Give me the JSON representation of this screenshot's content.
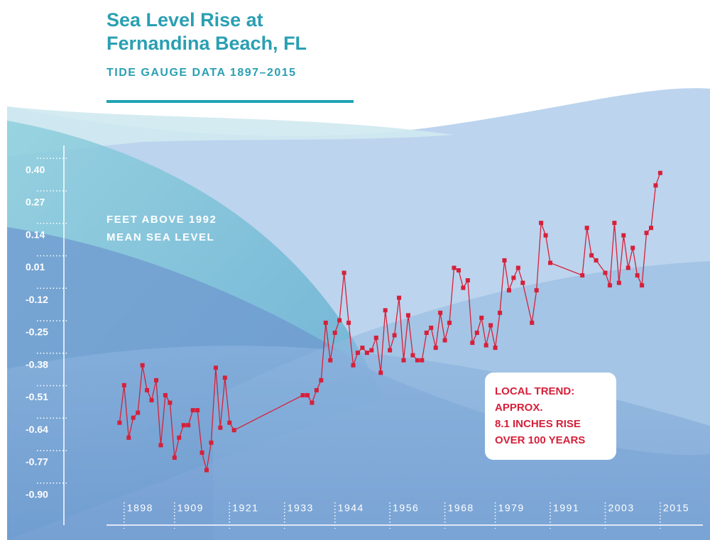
{
  "chart_data": {
    "type": "line",
    "title": [
      "Sea Level Rise at",
      "Fernandina Beach, FL"
    ],
    "subtitle": "TIDE GAUGE DATA 1897–2015",
    "y_label": [
      "FEET ABOVE 1992",
      "MEAN SEA LEVEL"
    ],
    "annotation": [
      "LOCAL TREND:",
      "APPROX.",
      "8.1 INCHES RISE",
      "OVER 100 YEARS"
    ],
    "color": "#d6203a",
    "xlim": [
      1894,
      2024
    ],
    "ylim": [
      -1.02,
      0.5
    ],
    "xticks": [
      1898,
      1909,
      1921,
      1933,
      1944,
      1956,
      1968,
      1979,
      1991,
      2003,
      2015
    ],
    "yticks": [
      {
        "value": 0.4,
        "label": "0.40"
      },
      0.27,
      0.14,
      0.01,
      -0.12,
      -0.25,
      -0.38,
      -0.51,
      -0.64,
      -0.77,
      {
        "value": -0.9,
        "label": "-0.90"
      }
    ],
    "x": [
      1897,
      1898,
      1899,
      1900,
      1901,
      1902,
      1903,
      1904,
      1905,
      1906,
      1907,
      1908,
      1909,
      1910,
      1911,
      1912,
      1913,
      1914,
      1915,
      1916,
      1917,
      1918,
      1919,
      1920,
      1921,
      1922,
      1937,
      1938,
      1939,
      1940,
      1941,
      1942,
      1943,
      1944,
      1945,
      1946,
      1947,
      1948,
      1949,
      1950,
      1951,
      1952,
      1953,
      1954,
      1955,
      1956,
      1957,
      1958,
      1959,
      1960,
      1961,
      1962,
      1963,
      1964,
      1965,
      1966,
      1967,
      1968,
      1969,
      1970,
      1971,
      1972,
      1973,
      1974,
      1975,
      1976,
      1977,
      1978,
      1979,
      1980,
      1981,
      1982,
      1983,
      1984,
      1985,
      1987,
      1988,
      1989,
      1990,
      1991,
      1998,
      1999,
      2000,
      2001,
      2003,
      2004,
      2005,
      2006,
      2007,
      2008,
      2009,
      2010,
      2011,
      2012,
      2013,
      2014,
      2015
    ],
    "values": [
      -0.61,
      -0.46,
      -0.67,
      -0.59,
      -0.57,
      -0.38,
      -0.48,
      -0.52,
      -0.44,
      -0.7,
      -0.5,
      -0.53,
      -0.75,
      -0.67,
      -0.62,
      -0.62,
      -0.56,
      -0.56,
      -0.73,
      -0.8,
      -0.69,
      -0.39,
      -0.63,
      -0.43,
      -0.61,
      -0.64,
      -0.5,
      -0.5,
      -0.53,
      -0.48,
      -0.44,
      -0.21,
      -0.36,
      -0.25,
      -0.2,
      -0.01,
      -0.21,
      -0.38,
      -0.33,
      -0.31,
      -0.33,
      -0.32,
      -0.27,
      -0.41,
      -0.16,
      -0.32,
      -0.26,
      -0.11,
      -0.36,
      -0.18,
      -0.34,
      -0.36,
      -0.36,
      -0.25,
      -0.23,
      -0.31,
      -0.17,
      -0.28,
      -0.21,
      0.01,
      0.0,
      -0.07,
      -0.04,
      -0.29,
      -0.25,
      -0.19,
      -0.3,
      -0.22,
      -0.31,
      -0.17,
      0.04,
      -0.08,
      -0.03,
      0.01,
      -0.05,
      -0.21,
      -0.08,
      0.19,
      0.14,
      0.03,
      -0.02,
      0.17,
      0.06,
      0.04,
      -0.01,
      -0.06,
      0.19,
      -0.05,
      0.14,
      0.01,
      0.09,
      -0.02,
      -0.06,
      0.15,
      0.17,
      0.34,
      0.39
    ]
  }
}
